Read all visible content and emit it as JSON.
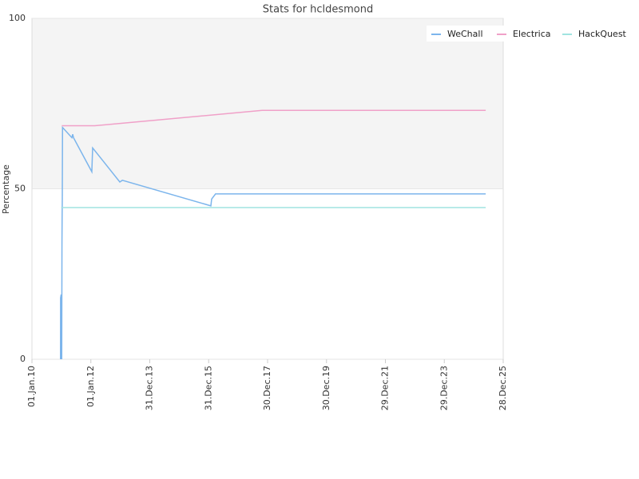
{
  "chart_data": {
    "type": "line",
    "title": "Stats for hcldesmond",
    "y_label": "Percentage",
    "xlim": [
      "2010-01-01",
      "2025-12-28"
    ],
    "xticks": [
      {
        "value": "2010-01-01",
        "label": "01.Jan.10"
      },
      {
        "value": "2012-01-01",
        "label": "01.Jan.12"
      },
      {
        "value": "2013-12-31",
        "label": "31.Dec.13"
      },
      {
        "value": "2015-12-31",
        "label": "31.Dec.15"
      },
      {
        "value": "2017-12-30",
        "label": "30.Dec.17"
      },
      {
        "value": "2019-12-30",
        "label": "30.Dec.19"
      },
      {
        "value": "2021-12-29",
        "label": "29.Dec.21"
      },
      {
        "value": "2023-12-29",
        "label": "29.Dec.23"
      },
      {
        "value": "2025-12-28",
        "label": "28.Dec.25"
      }
    ],
    "ylim": [
      0,
      100
    ],
    "yticks": [
      0,
      50,
      100
    ],
    "plot_band": {
      "from": 50,
      "to": 100,
      "color": "#f4f4f4"
    },
    "legend": "top-right",
    "series": [
      {
        "name": "WeChall",
        "color": "#7cb5ec",
        "x": [
          "2010-12-21",
          "2010-12-22",
          "2010-12-29",
          "2011-01-05",
          "2011-01-08",
          "2011-01-10",
          "2011-01-12",
          "2011-01-15",
          "2011-05-11",
          "2011-05-21",
          "2011-05-31",
          "2012-01-13",
          "2012-01-23",
          "2012-12-25",
          "2013-01-25",
          "2016-01-27",
          "2016-02-06",
          "2016-03-25",
          "2025-05-25"
        ],
        "values": [
          0,
          18,
          19,
          0,
          34,
          42,
          47,
          68,
          65,
          66,
          65,
          55,
          62,
          52,
          52.5,
          45,
          47,
          48.5,
          48.5
        ]
      },
      {
        "name": "Electrica",
        "color": "#f0a0c8",
        "x": [
          "2011-01-06",
          "2012-02-18",
          "2017-10-23",
          "2025-05-25"
        ],
        "values": [
          68.5,
          68.5,
          73,
          73
        ]
      },
      {
        "name": "HackQuest",
        "color": "#a0e4e0",
        "x": [
          "2010-12-29",
          "2025-05-25"
        ],
        "values": [
          44.5,
          44.5
        ]
      }
    ]
  }
}
